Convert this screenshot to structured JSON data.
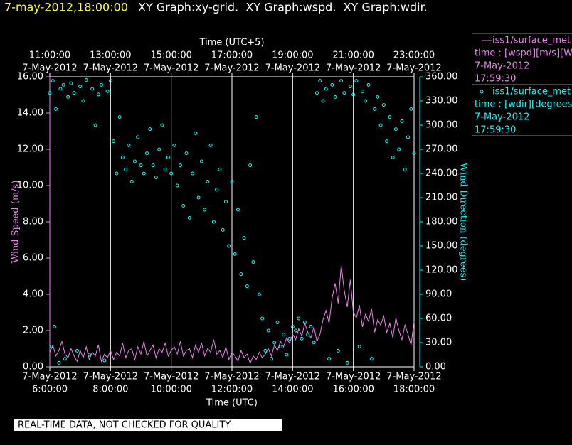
{
  "chart_data": {
    "type": "xy-graph",
    "title_time": "7-may-2012,18:00:00",
    "title": "XY Graph:xy-grid.  XY Graph:wspd.  XY Graph:wdir.",
    "xlabel": "Time (UTC)",
    "x2label": "Time (UTC+5)",
    "ylabel": "Wind Speed (m/s)",
    "y2label": "Wind Direction (degrees)",
    "note": "REAL-TIME DATA, NOT CHECKED FOR QUALITY",
    "xlim": [
      6,
      18
    ],
    "xticks": [
      {
        "value": 6,
        "label": "6:00:00"
      },
      {
        "value": 8,
        "label": "8:00:00"
      },
      {
        "value": 10,
        "label": "10:00:00"
      },
      {
        "value": 12,
        "label": "12:00:00"
      },
      {
        "value": 14,
        "label": "14:00:00"
      },
      {
        "value": 16,
        "label": "16:00:00"
      },
      {
        "value": 18,
        "label": "18:00:00"
      }
    ],
    "xtick_dates": [
      "7-May-2012",
      "7-May-2012",
      "7-May-2012",
      "7-May-2012",
      "7-May-2012",
      "7-May-2012",
      "7-May-2012"
    ],
    "x2ticks": [
      {
        "value": 6,
        "label": "11:00:00"
      },
      {
        "value": 8,
        "label": "13:00:00"
      },
      {
        "value": 10,
        "label": "15:00:00"
      },
      {
        "value": 12,
        "label": "17:00:00"
      },
      {
        "value": 14,
        "label": "19:00:00"
      },
      {
        "value": 16,
        "label": "21:00:00"
      },
      {
        "value": 18,
        "label": "23:00:00"
      }
    ],
    "x2tick_dates": [
      "7-May-2012",
      "7-May-2012",
      "7-May-2012",
      "7-May-2012",
      "7-May-2012",
      "7-May-2012",
      "7-May-2012"
    ],
    "ylim": [
      0,
      16
    ],
    "yticks": [
      {
        "value": 0,
        "label": "0.00"
      },
      {
        "value": 2,
        "label": "2.00"
      },
      {
        "value": 4,
        "label": "4.00"
      },
      {
        "value": 6,
        "label": "6.00"
      },
      {
        "value": 8,
        "label": "8.00"
      },
      {
        "value": 10,
        "label": "10.00"
      },
      {
        "value": 12,
        "label": "12.00"
      },
      {
        "value": 14,
        "label": "14.00"
      },
      {
        "value": 16,
        "label": "16.00"
      }
    ],
    "y2lim": [
      0,
      360
    ],
    "y2ticks": [
      {
        "value": 0,
        "label": "0.00"
      },
      {
        "value": 30,
        "label": "30.00"
      },
      {
        "value": 60,
        "label": "60.00"
      },
      {
        "value": 90,
        "label": "90.00"
      },
      {
        "value": 120,
        "label": "120.00"
      },
      {
        "value": 150,
        "label": "150.00"
      },
      {
        "value": 180,
        "label": "180.00"
      },
      {
        "value": 210,
        "label": "210.00"
      },
      {
        "value": 240,
        "label": "240.00"
      },
      {
        "value": 270,
        "label": "270.00"
      },
      {
        "value": 300,
        "label": "300.00"
      },
      {
        "value": 330,
        "label": "330.00"
      },
      {
        "value": 360,
        "label": "360.00"
      }
    ],
    "grid": true,
    "series": [
      {
        "name": "iss1/surface_met",
        "kind": "line",
        "color": "#ee82ee",
        "legend_detail": [
          "time : [wspd][m/s][Wind",
          "7-May-2012",
          "17:59:30"
        ],
        "x": [
          6.0,
          6.1,
          6.2,
          6.3,
          6.4,
          6.5,
          6.6,
          6.7,
          6.8,
          6.9,
          7.0,
          7.1,
          7.2,
          7.3,
          7.4,
          7.5,
          7.6,
          7.7,
          7.8,
          7.9,
          8.0,
          8.1,
          8.2,
          8.3,
          8.4,
          8.5,
          8.6,
          8.7,
          8.8,
          8.9,
          9.0,
          9.1,
          9.2,
          9.3,
          9.4,
          9.5,
          9.6,
          9.7,
          9.8,
          9.9,
          10.0,
          10.1,
          10.2,
          10.3,
          10.4,
          10.5,
          10.6,
          10.7,
          10.8,
          10.9,
          11.0,
          11.1,
          11.2,
          11.3,
          11.4,
          11.5,
          11.6,
          11.7,
          11.8,
          11.9,
          12.0,
          12.1,
          12.2,
          12.3,
          12.4,
          12.5,
          12.6,
          12.7,
          12.8,
          12.9,
          13.0,
          13.1,
          13.2,
          13.3,
          13.4,
          13.5,
          13.6,
          13.7,
          13.8,
          13.9,
          14.0,
          14.1,
          14.2,
          14.3,
          14.4,
          14.5,
          14.6,
          14.7,
          14.8,
          14.9,
          15.0,
          15.1,
          15.2,
          15.3,
          15.4,
          15.5,
          15.6,
          15.7,
          15.8,
          15.9,
          16.0,
          16.1,
          16.2,
          16.3,
          16.4,
          16.5,
          16.6,
          16.7,
          16.8,
          16.9,
          17.0,
          17.1,
          17.2,
          17.3,
          17.4,
          17.5,
          17.6,
          17.7,
          17.8,
          17.9,
          18.0
        ],
        "values": [
          0.8,
          1.2,
          0.6,
          0.9,
          1.4,
          0.7,
          0.5,
          1.0,
          0.6,
          0.3,
          0.9,
          0.5,
          1.1,
          0.4,
          0.8,
          0.6,
          1.2,
          0.3,
          0.7,
          0.5,
          0.9,
          0.4,
          0.8,
          0.6,
          1.3,
          0.5,
          0.9,
          1.0,
          0.4,
          1.1,
          0.7,
          1.4,
          0.6,
          0.9,
          1.2,
          0.5,
          1.0,
          0.8,
          1.3,
          0.6,
          0.9,
          1.1,
          0.7,
          1.4,
          0.6,
          0.9,
          1.0,
          0.5,
          1.2,
          0.8,
          1.3,
          0.6,
          1.0,
          0.8,
          1.5,
          0.7,
          0.9,
          0.5,
          1.1,
          0.4,
          0.8,
          0.6,
          0.3,
          0.9,
          0.5,
          0.7,
          0.2,
          0.6,
          0.4,
          0.8,
          0.5,
          0.7,
          1.0,
          0.6,
          1.2,
          0.9,
          1.4,
          1.1,
          1.6,
          1.3,
          1.8,
          1.5,
          2.1,
          1.7,
          2.4,
          1.9,
          1.6,
          2.2,
          1.4,
          1.8,
          2.6,
          3.1,
          2.4,
          3.8,
          4.6,
          3.5,
          5.6,
          4.2,
          3.3,
          4.8,
          3.0,
          2.7,
          3.4,
          2.2,
          2.9,
          2.5,
          3.2,
          1.9,
          2.6,
          2.3,
          2.8,
          1.9,
          2.4,
          1.6,
          2.7,
          2.0,
          1.5,
          2.3,
          1.8,
          1.2,
          2.5
        ]
      },
      {
        "name": "iss1/surface_met",
        "kind": "scatter",
        "axis": "y2",
        "color": "#00ffff",
        "legend_detail": [
          "time : [wdir][degrees][V",
          "7-May-2012",
          "17:59:30"
        ],
        "x": [
          6.0,
          6.05,
          6.1,
          6.15,
          6.2,
          6.3,
          6.35,
          6.45,
          6.5,
          6.6,
          6.7,
          6.8,
          6.9,
          7.0,
          7.1,
          7.2,
          7.3,
          7.4,
          7.5,
          7.6,
          7.7,
          7.8,
          7.9,
          8.0,
          8.1,
          8.2,
          8.3,
          8.4,
          8.5,
          8.6,
          8.7,
          8.8,
          8.9,
          9.0,
          9.1,
          9.2,
          9.3,
          9.4,
          9.5,
          9.6,
          9.7,
          9.8,
          9.9,
          10.0,
          10.1,
          10.2,
          10.3,
          10.4,
          10.5,
          10.6,
          10.7,
          10.8,
          10.9,
          11.0,
          11.1,
          11.2,
          11.3,
          11.4,
          11.5,
          11.6,
          11.7,
          11.8,
          11.9,
          12.0,
          12.1,
          12.2,
          12.3,
          12.4,
          12.5,
          12.6,
          12.7,
          12.8,
          12.9,
          13.0,
          13.1,
          13.2,
          13.3,
          13.4,
          13.5,
          13.6,
          13.7,
          13.8,
          13.9,
          14.0,
          14.1,
          14.2,
          14.3,
          14.4,
          14.5,
          14.6,
          14.7,
          14.8,
          14.9,
          15.0,
          15.1,
          15.2,
          15.3,
          15.4,
          15.5,
          15.6,
          15.7,
          15.8,
          15.9,
          16.0,
          16.1,
          16.2,
          16.3,
          16.4,
          16.5,
          16.6,
          16.7,
          16.8,
          16.9,
          17.0,
          17.1,
          17.2,
          17.3,
          17.4,
          17.5,
          17.6,
          17.7,
          17.8,
          17.9,
          18.0
        ],
        "values": [
          340,
          25,
          355,
          50,
          320,
          5,
          345,
          350,
          10,
          335,
          352,
          340,
          20,
          348,
          330,
          356,
          15,
          345,
          300,
          338,
          350,
          8,
          342,
          355,
          280,
          240,
          310,
          260,
          245,
          275,
          230,
          255,
          285,
          250,
          240,
          265,
          295,
          250,
          235,
          270,
          300,
          245,
          260,
          240,
          275,
          225,
          250,
          200,
          265,
          185,
          240,
          290,
          210,
          255,
          195,
          230,
          275,
          180,
          220,
          245,
          170,
          205,
          150,
          230,
          140,
          195,
          115,
          160,
          100,
          250,
          130,
          310,
          90,
          60,
          20,
          45,
          10,
          30,
          55,
          25,
          40,
          15,
          35,
          50,
          45,
          60,
          35,
          55,
          40,
          50,
          30,
          340,
          355,
          330,
          345,
          10,
          350,
          335,
          20,
          355,
          340,
          5,
          348,
          338,
          355,
          25,
          342,
          330,
          350,
          10,
          320,
          335,
          300,
          325,
          280,
          310,
          260,
          295,
          270,
          305,
          245,
          285,
          320,
          265
        ]
      }
    ]
  }
}
